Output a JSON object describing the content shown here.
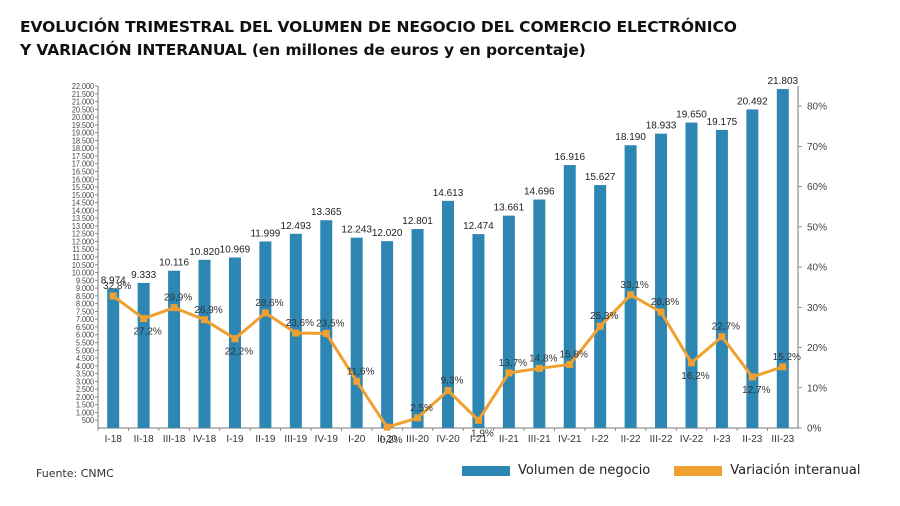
{
  "title_line1": "EVOLUCIÓN TRIMESTRAL DEL VOLUMEN DE NEGOCIO DEL COMERCIO ELECTRÓNICO",
  "title_line2": "Y VARIACIÓN INTERANUAL (en millones de euros y en porcentaje)",
  "source": "Fuente: CNMC",
  "colors": {
    "bar": "#2e86b3",
    "line": "#f0a030",
    "axis": "#777777",
    "text": "#333333"
  },
  "chart_data": {
    "type": "bar",
    "categories": [
      "I-18",
      "II-18",
      "III-18",
      "IV-18",
      "I-19",
      "II-19",
      "III-19",
      "IV-19",
      "I-20",
      "II-20",
      "III-20",
      "IV-20",
      "I-21",
      "II-21",
      "III-21",
      "IV-21",
      "I-22",
      "II-22",
      "III-22",
      "IV-22",
      "I-23",
      "II-23",
      "III-23"
    ],
    "series": [
      {
        "name": "Volumen de negocio",
        "type": "bar",
        "axis": "left",
        "values": [
          8974,
          9333,
          10116,
          10820,
          10969,
          11999,
          12493,
          13365,
          12243,
          12020,
          12801,
          14613,
          12474,
          13661,
          14696,
          16916,
          15627,
          18190,
          18933,
          19650,
          19175,
          20492,
          21803
        ],
        "labels": [
          "8.974",
          "9.333",
          "10.116",
          "10.820",
          "10.969",
          "11.999",
          "12.493",
          "13.365",
          "12.243",
          "12.020",
          "12.801",
          "14.613",
          "12.474",
          "13.661",
          "14.696",
          "16.916",
          "15.627",
          "18.190",
          "18.933",
          "19.650",
          "19.175",
          "20.492",
          "21.803"
        ]
      },
      {
        "name": "Variación interanual",
        "type": "line",
        "axis": "right",
        "values": [
          32.8,
          27.2,
          29.9,
          26.9,
          22.2,
          28.6,
          23.6,
          23.5,
          11.6,
          0.2,
          2.5,
          9.3,
          1.9,
          13.7,
          14.8,
          15.8,
          25.3,
          33.1,
          28.8,
          16.2,
          22.7,
          12.7,
          15.2
        ],
        "labels": [
          "32,8%",
          "27,2%",
          "29,9%",
          "26,9%",
          "22,2%",
          "28,6%",
          "23,6%",
          "23,5%",
          "11,6%",
          "0,2%",
          "2,5%",
          "9,3%",
          "1,9%",
          "13,7%",
          "14,8%",
          "15,8%",
          "25,3%",
          "33,1%",
          "28,8%",
          "16,2%",
          "22,7%",
          "12,7%",
          "15,2%"
        ]
      }
    ],
    "y_left": {
      "ylim": [
        0,
        22000
      ],
      "ticks": [
        "500",
        "1.000",
        "1.500",
        "2.000",
        "2.500",
        "3.000",
        "3.500",
        "4.000",
        "4.500",
        "5.000",
        "5.500",
        "6.000",
        "6.500",
        "7.000",
        "7.500",
        "8.000",
        "8.500",
        "9.000",
        "9.500",
        "10.000",
        "10.500",
        "11.000",
        "11.500",
        "12.000",
        "12.500",
        "13.000",
        "13.500",
        "14.000",
        "14.500",
        "15.000",
        "15.500",
        "16.000",
        "16.500",
        "17.000",
        "17.500",
        "18.000",
        "18.500",
        "19.000",
        "19.500",
        "20.000",
        "20.500",
        "21.000",
        "21.500",
        "22.000"
      ]
    },
    "y_right": {
      "ylim": [
        0,
        85
      ],
      "ticks": [
        "0%",
        "10%",
        "20%",
        "30%",
        "40%",
        "50%",
        "60%",
        "70%",
        "80%"
      ]
    },
    "legend_position": "bottom-right",
    "grid": false
  }
}
